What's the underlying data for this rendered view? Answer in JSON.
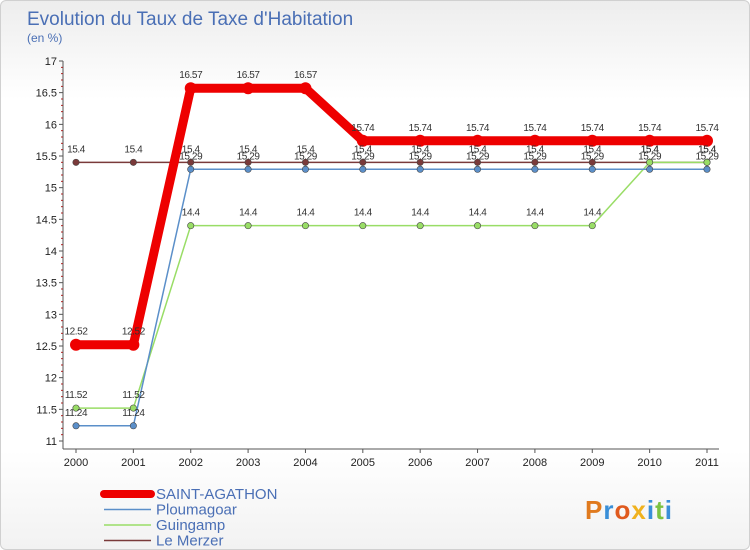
{
  "chart_data": {
    "type": "line",
    "title": "Evolution du Taux de Taxe d'Habitation",
    "subtitle": "(en %)",
    "x": [
      "2000",
      "2001",
      "2002",
      "2003",
      "2004",
      "2005",
      "2006",
      "2007",
      "2008",
      "2009",
      "2010",
      "2011"
    ],
    "ylim": [
      11,
      17
    ],
    "yticks": [
      "11",
      "11.5",
      "12",
      "12.5",
      "13",
      "13.5",
      "14",
      "14.5",
      "15",
      "15.5",
      "16",
      "16.5",
      "17"
    ],
    "series": [
      {
        "name": "SAINT-AGATHON",
        "color": "#ee0000",
        "values": [
          12.52,
          12.52,
          16.57,
          16.57,
          16.57,
          15.74,
          15.74,
          15.74,
          15.74,
          15.74,
          15.74,
          15.74
        ],
        "labels": [
          "12.52",
          "12.52",
          "16.57",
          "16.57",
          "16.57",
          "15.74",
          "15.74",
          "15.74",
          "15.74",
          "15.74",
          "15.74",
          "15.74"
        ]
      },
      {
        "name": "Ploumagoar",
        "color": "#5b8fc9",
        "values": [
          11.24,
          11.24,
          15.29,
          15.29,
          15.29,
          15.29,
          15.29,
          15.29,
          15.29,
          15.29,
          15.29,
          15.29
        ],
        "labels": [
          "11.24",
          "11.24",
          "15.29",
          "15.29",
          "15.29",
          "15.29",
          "15.29",
          "15.29",
          "15.29",
          "15.29",
          "15.29",
          "15.29"
        ]
      },
      {
        "name": "Guingamp",
        "color": "#99dd66",
        "values": [
          11.52,
          11.52,
          14.4,
          14.4,
          14.4,
          14.4,
          14.4,
          14.4,
          14.4,
          14.4,
          15.4,
          15.4
        ],
        "labels": [
          "11.52",
          "11.52",
          "14.4",
          "14.4",
          "14.4",
          "14.4",
          "14.4",
          "14.4",
          "14.4",
          "14.4",
          "15.4",
          "15.4"
        ]
      },
      {
        "name": "Le Merzer",
        "color": "#7a3a3a",
        "values": [
          15.4,
          15.4,
          15.4,
          15.4,
          15.4,
          15.4,
          15.4,
          15.4,
          15.4,
          15.4,
          15.4,
          15.4
        ],
        "labels": [
          "15.4",
          "15.4",
          "15.4",
          "15.4",
          "15.4",
          "15.4",
          "15.4",
          "15.4",
          "15.4",
          "15.4",
          "15.4",
          "15.4"
        ]
      }
    ],
    "grid": false,
    "legend": "bottom-left"
  },
  "logo": {
    "text": "Proxiti"
  }
}
